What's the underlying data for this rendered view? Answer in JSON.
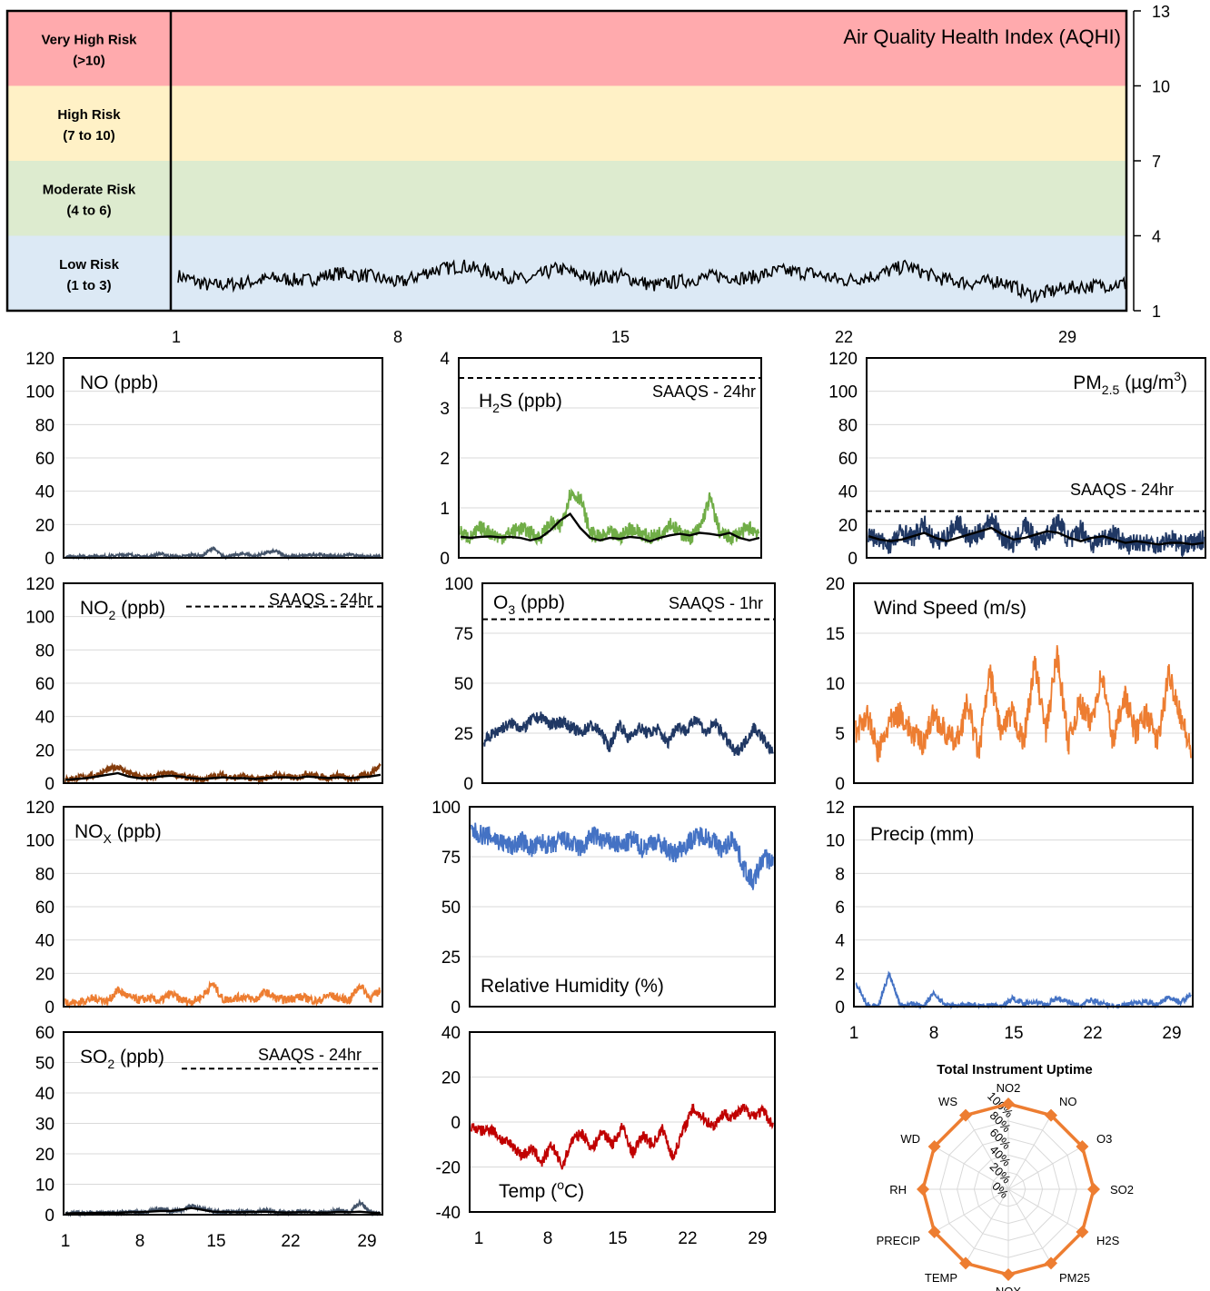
{
  "chart_data": [
    {
      "id": "aqhi",
      "type": "line",
      "title": "Air Quality Health Index (AQHI)",
      "bands": [
        {
          "label_1": "Very High Risk",
          "label_2": "(>10)",
          "from": 10,
          "to": 13,
          "color": "#ffaaad"
        },
        {
          "label_1": "High Risk",
          "label_2": "(7 to 10)",
          "from": 7,
          "to": 10,
          "color": "#fff1c6"
        },
        {
          "label_1": "Moderate Risk",
          "label_2": "(4 to 6)",
          "from": 4,
          "to": 7,
          "color": "#ddebcf"
        },
        {
          "label_1": "Low Risk",
          "label_2": "(1 to 3)",
          "from": 1,
          "to": 4,
          "color": "#dce9f5"
        }
      ],
      "yticks": [
        "1",
        "4",
        "7",
        "10",
        "13"
      ],
      "ylim": [
        1,
        13
      ],
      "xticks": [
        "1",
        "8",
        "15",
        "22",
        "29"
      ],
      "xlim": [
        1,
        31
      ],
      "color": "#000000",
      "series_approx": [
        2.4,
        2.0,
        2.1,
        2.3,
        2.2,
        2.5,
        2.4,
        2.1,
        2.6,
        2.8,
        2.5,
        2.2,
        2.7,
        2.3,
        2.4,
        2.0,
        2.2,
        2.4,
        2.3,
        2.6,
        2.5,
        2.2,
        2.4,
        2.8,
        2.3,
        2.1,
        2.2,
        1.6,
        1.9,
        2.0,
        2.1
      ]
    },
    {
      "id": "no",
      "type": "line",
      "title": "NO (ppb)",
      "ylim": [
        0,
        120
      ],
      "yticks": [
        "0",
        "20",
        "40",
        "60",
        "80",
        "100",
        "120"
      ],
      "xlim": [
        1,
        31
      ],
      "series": [
        {
          "color": "#44546a",
          "values": [
            0.5,
            0.6,
            0.8,
            1.2,
            0.9,
            1.5,
            2.0,
            1.0,
            0.8,
            2.5,
            1.0,
            0.7,
            1.8,
            1.2,
            6.0,
            0.8,
            1.5,
            2.5,
            1.0,
            3.0,
            4.0,
            1.0,
            0.9,
            1.5,
            2.0,
            1.2,
            1.0,
            2.0,
            0.8,
            1.0,
            1.5
          ]
        }
      ]
    },
    {
      "id": "h2s",
      "type": "line",
      "title_main": "H",
      "title_sub": "2",
      "title_rest": "S (ppb)",
      "ylim": [
        0,
        4
      ],
      "yticks": [
        "0",
        "1",
        "2",
        "3",
        "4"
      ],
      "xlim": [
        1,
        31
      ],
      "reference": {
        "label": "SAAQS - 24hr",
        "value": 3.6
      },
      "series": [
        {
          "color": "#70ad47",
          "values": [
            0.5,
            0.4,
            0.6,
            0.5,
            0.4,
            0.5,
            0.6,
            0.5,
            0.4,
            0.7,
            0.6,
            1.3,
            1.2,
            0.5,
            0.4,
            0.5,
            0.4,
            0.6,
            0.5,
            0.4,
            0.5,
            0.7,
            0.5,
            0.4,
            0.6,
            1.2,
            0.5,
            0.4,
            0.5,
            0.6,
            0.5
          ]
        },
        {
          "color": "#000000",
          "values": [
            0.42,
            0.4,
            0.42,
            0.43,
            0.41,
            0.42,
            0.4,
            0.35,
            0.4,
            0.55,
            0.75,
            0.88,
            0.6,
            0.4,
            0.35,
            0.4,
            0.38,
            0.42,
            0.4,
            0.33,
            0.4,
            0.45,
            0.48,
            0.45,
            0.5,
            0.48,
            0.45,
            0.5,
            0.4,
            0.35,
            0.4
          ]
        }
      ]
    },
    {
      "id": "pm25",
      "type": "line",
      "title_main": "PM",
      "title_sub": "2.5",
      "title_rest": " (µg/m",
      "title_sup": "3",
      "title_end": ")",
      "ylim": [
        0,
        120
      ],
      "yticks": [
        "0",
        "20",
        "40",
        "60",
        "80",
        "100",
        "120"
      ],
      "xlim": [
        1,
        31
      ],
      "reference": {
        "label": "SAAQS - 24hr",
        "value": 28
      },
      "series": [
        {
          "color": "#203864",
          "values": [
            14,
            10,
            8,
            16,
            12,
            20,
            9,
            13,
            22,
            11,
            15,
            24,
            12,
            8,
            20,
            10,
            14,
            22,
            9,
            18,
            8,
            12,
            15,
            7,
            10,
            9,
            8,
            12,
            7,
            9,
            11
          ]
        },
        {
          "color": "#000000",
          "values": [
            13,
            11,
            10,
            11,
            13,
            15,
            12,
            10,
            12,
            14,
            16,
            18,
            14,
            11,
            12,
            14,
            16,
            15,
            12,
            10,
            12,
            13,
            11,
            9,
            10,
            9,
            8,
            9,
            9,
            8,
            9
          ]
        }
      ]
    },
    {
      "id": "no2",
      "type": "line",
      "title_main": "NO",
      "title_sub": "2",
      "title_rest": " (ppb)",
      "ylim": [
        0,
        120
      ],
      "yticks": [
        "0",
        "20",
        "40",
        "60",
        "80",
        "100",
        "120"
      ],
      "xlim": [
        1,
        31
      ],
      "reference": {
        "label": "SAAQS - 24hr",
        "value": 106
      },
      "series": [
        {
          "color": "#843c0c",
          "values": [
            2,
            3,
            4,
            5,
            8,
            10,
            6,
            4,
            3,
            5,
            6,
            4,
            3,
            2,
            4,
            5,
            3,
            4,
            2,
            3,
            5,
            4,
            3,
            6,
            4,
            3,
            5,
            2,
            4,
            6,
            11
          ]
        },
        {
          "color": "#000000",
          "values": [
            2,
            2.5,
            3,
            4,
            5,
            6,
            4,
            3,
            3,
            4,
            4.5,
            4,
            3,
            2.5,
            3,
            3.5,
            3,
            3,
            2.5,
            3,
            3.5,
            3.5,
            3,
            4,
            3.5,
            3,
            3.5,
            3,
            3.5,
            4,
            5
          ]
        }
      ]
    },
    {
      "id": "o3",
      "type": "line",
      "title_main": "O",
      "title_sub": "3",
      "title_rest": " (ppb)",
      "ylim": [
        0,
        100
      ],
      "yticks": [
        "0",
        "25",
        "50",
        "75",
        "100"
      ],
      "xlim": [
        1,
        31
      ],
      "reference": {
        "label": "SAAQS - 1hr",
        "value": 82
      },
      "series": [
        {
          "color": "#203864",
          "values": [
            21,
            25,
            28,
            30,
            27,
            32,
            33,
            29,
            31,
            28,
            25,
            29,
            26,
            18,
            30,
            22,
            28,
            25,
            27,
            20,
            29,
            26,
            33,
            25,
            30,
            23,
            15,
            20,
            28,
            22,
            14
          ]
        }
      ]
    },
    {
      "id": "ws",
      "type": "line",
      "title": "Wind Speed (m/s)",
      "ylim": [
        0,
        20
      ],
      "yticks": [
        "0",
        "5",
        "10",
        "15",
        "20"
      ],
      "xlim": [
        1,
        31
      ],
      "series": [
        {
          "color": "#ed7d31",
          "values": [
            5,
            7,
            3,
            6,
            7,
            5,
            4,
            7,
            5,
            4,
            8,
            3,
            11,
            5,
            7,
            4,
            12,
            5,
            13,
            4,
            8,
            6,
            11,
            4,
            9,
            5,
            7,
            4,
            11,
            7,
            3
          ]
        }
      ]
    },
    {
      "id": "nox",
      "type": "line",
      "title_main": "NO",
      "title_sub": "X",
      "title_rest": " (ppb)",
      "ylim": [
        0,
        120
      ],
      "yticks": [
        "0",
        "20",
        "40",
        "60",
        "80",
        "100",
        "120"
      ],
      "xlim": [
        1,
        31
      ],
      "series": [
        {
          "color": "#ed7d31",
          "values": [
            3,
            2,
            4,
            5,
            3,
            10,
            6,
            4,
            5,
            3,
            8,
            4,
            3,
            6,
            14,
            4,
            5,
            6,
            4,
            9,
            5,
            4,
            6,
            5,
            3,
            7,
            5,
            4,
            13,
            5,
            10
          ]
        }
      ]
    },
    {
      "id": "rh",
      "type": "line",
      "title": "Relative Humidity (%)",
      "ylim": [
        0,
        100
      ],
      "yticks": [
        "0",
        "25",
        "50",
        "75",
        "100"
      ],
      "xlim": [
        1,
        31
      ],
      "series": [
        {
          "color": "#4472c4",
          "values": [
            88,
            86,
            85,
            82,
            80,
            83,
            79,
            82,
            80,
            84,
            81,
            79,
            86,
            83,
            82,
            80,
            84,
            79,
            83,
            81,
            76,
            80,
            84,
            86,
            83,
            78,
            85,
            70,
            62,
            75,
            72
          ]
        }
      ]
    },
    {
      "id": "precip",
      "type": "line",
      "title": "Precip (mm)",
      "ylim": [
        0,
        12
      ],
      "yticks": [
        "0",
        "2",
        "4",
        "6",
        "8",
        "10",
        "12"
      ],
      "xticks": [
        "1",
        "8",
        "15",
        "22",
        "29"
      ],
      "xlim": [
        1,
        31
      ],
      "series": [
        {
          "color": "#4472c4",
          "values": [
            1.4,
            0.1,
            0.0,
            2.0,
            0.1,
            0.2,
            0.0,
            0.8,
            0.1,
            0.0,
            0.2,
            0.0,
            0.1,
            0.0,
            0.5,
            0.2,
            0.3,
            0.1,
            0.5,
            0.3,
            0.0,
            0.4,
            0.2,
            0.0,
            0.1,
            0.2,
            0.3,
            0.1,
            0.6,
            0.2,
            0.8
          ]
        }
      ]
    },
    {
      "id": "so2",
      "type": "line",
      "title_main": "SO",
      "title_sub": "2",
      "title_rest": " (ppb)",
      "ylim": [
        0,
        60
      ],
      "yticks": [
        "0",
        "10",
        "20",
        "30",
        "40",
        "50",
        "60"
      ],
      "xticks": [
        "1",
        "8",
        "15",
        "22",
        "29"
      ],
      "xlim": [
        1,
        31
      ],
      "reference": {
        "label": "SAAQS - 24hr",
        "value": 48
      },
      "series": [
        {
          "color": "#44546a",
          "values": [
            0.5,
            0.6,
            0.5,
            0.8,
            0.6,
            0.7,
            1.0,
            0.8,
            1.2,
            2.0,
            1.0,
            1.5,
            3.0,
            2.0,
            1.2,
            1.0,
            0.8,
            0.9,
            1.0,
            1.5,
            0.8,
            0.7,
            0.9,
            1.0,
            0.6,
            0.8,
            1.5,
            0.9,
            4.0,
            0.8,
            0.5
          ]
        },
        {
          "color": "#000000",
          "values": [
            0.4,
            0.5,
            0.5,
            0.6,
            0.6,
            0.6,
            0.8,
            0.8,
            1.0,
            1.2,
            1.2,
            1.6,
            2.2,
            1.6,
            1.0,
            0.9,
            0.8,
            0.8,
            0.9,
            1.0,
            0.8,
            0.7,
            0.8,
            0.8,
            0.7,
            0.7,
            0.9,
            0.8,
            1.0,
            0.7,
            0.5
          ]
        }
      ]
    },
    {
      "id": "temp",
      "type": "line",
      "title_main": "Temp (",
      "title_sup": "o",
      "title_rest": "C)",
      "ylim": [
        -40,
        40
      ],
      "yticks": [
        "-40",
        "-20",
        "0",
        "20",
        "40"
      ],
      "xticks": [
        "1",
        "8",
        "15",
        "22",
        "29"
      ],
      "xlim": [
        1,
        31
      ],
      "series": [
        {
          "color": "#c00000",
          "values": [
            -2,
            -4,
            -3,
            -8,
            -10,
            -15,
            -12,
            -18,
            -10,
            -20,
            -8,
            -5,
            -12,
            -4,
            -10,
            -2,
            -14,
            -6,
            -10,
            -3,
            -16,
            -4,
            6,
            2,
            -2,
            4,
            2,
            6,
            3,
            5,
            -2
          ]
        }
      ]
    },
    {
      "id": "uptime",
      "type": "radar",
      "title": "Total Instrument Uptime",
      "categories": [
        "NO2",
        "NO",
        "O3",
        "SO2",
        "H2S",
        "PM25",
        "NOX",
        "TEMP",
        "PRECIP",
        "RH",
        "WD",
        "WS"
      ],
      "rlabels": [
        "0%",
        "20%",
        "40%",
        "60%",
        "80%",
        "100%"
      ],
      "values": [
        100,
        100,
        100,
        100,
        100,
        100,
        100,
        100,
        100,
        100,
        100,
        100
      ],
      "color": "#ed7d31"
    }
  ],
  "bottom_xticks": [
    "1",
    "8",
    "15",
    "22",
    "29"
  ]
}
